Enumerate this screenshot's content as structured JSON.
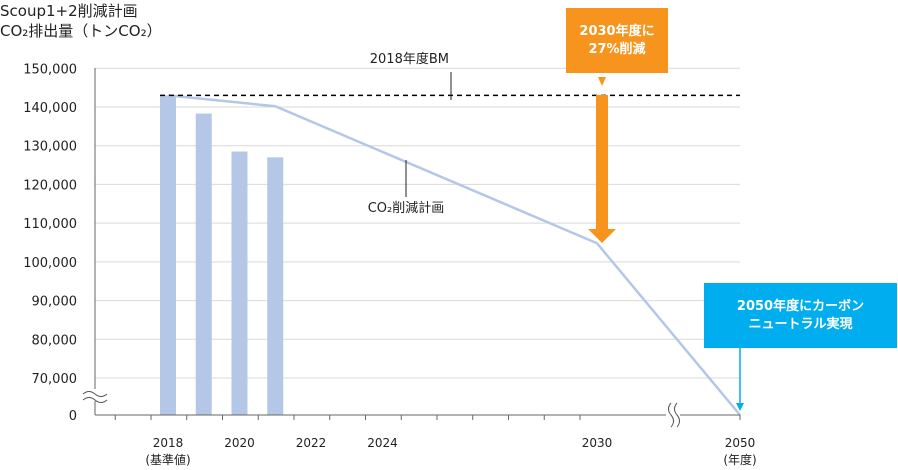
{
  "header": {
    "title_line1": "Scoup1+2削減計画",
    "title_line2": "CO₂排出量（トンCO₂）"
  },
  "annotations": {
    "bm_label": "2018年度BM",
    "plan_label": "CO₂削減計画",
    "callout_2030": [
      "2030年度に",
      "27%削減"
    ],
    "callout_2050": [
      "2050年度にカーボン",
      "ニュートラル実現"
    ]
  },
  "colors": {
    "bar": "#b4c7e7",
    "plan_line": "#b4c7e7",
    "bm_line": "#000000",
    "callout_2030": "#f7941d",
    "callout_2050": "#00aeef",
    "grid": "#d9d9d9"
  },
  "chart_data": {
    "type": "bar",
    "title": "",
    "ylabel": "CO₂排出量（トンCO₂）",
    "xlabel": "",
    "y_ticks": [
      0,
      70000,
      80000,
      90000,
      100000,
      110000,
      120000,
      130000,
      140000,
      150000
    ],
    "y_tick_labels": [
      "0",
      "70,000",
      "80,000",
      "90,000",
      "100,000",
      "110,000",
      "120,000",
      "130,000",
      "140,000",
      "150,000"
    ],
    "y_axis_break": true,
    "x_axis_break": true,
    "x_ticks": [
      {
        "year": 2018,
        "label": "2018",
        "sublabel": "(基準値)"
      },
      {
        "year": 2020,
        "label": "2020"
      },
      {
        "year": 2022,
        "label": "2022"
      },
      {
        "year": 2024,
        "label": "2024"
      },
      {
        "year": 2030,
        "label": "2030"
      },
      {
        "year": 2050,
        "label": "2050",
        "sublabel": "(年度)"
      }
    ],
    "bars": [
      {
        "year": 2018,
        "value": 143000
      },
      {
        "year": 2019,
        "value": 138300
      },
      {
        "year": 2020,
        "value": 128500
      },
      {
        "year": 2021,
        "value": 127000
      }
    ],
    "reduction_plan_line": [
      {
        "year": 2018,
        "value": 143000
      },
      {
        "year": 2021,
        "value": 140200
      },
      {
        "year": 2030,
        "value": 104800
      },
      {
        "year": 2050,
        "value": 0
      }
    ],
    "bm_line": {
      "value": 143000,
      "label": "2018年度BM"
    },
    "grid": true
  }
}
